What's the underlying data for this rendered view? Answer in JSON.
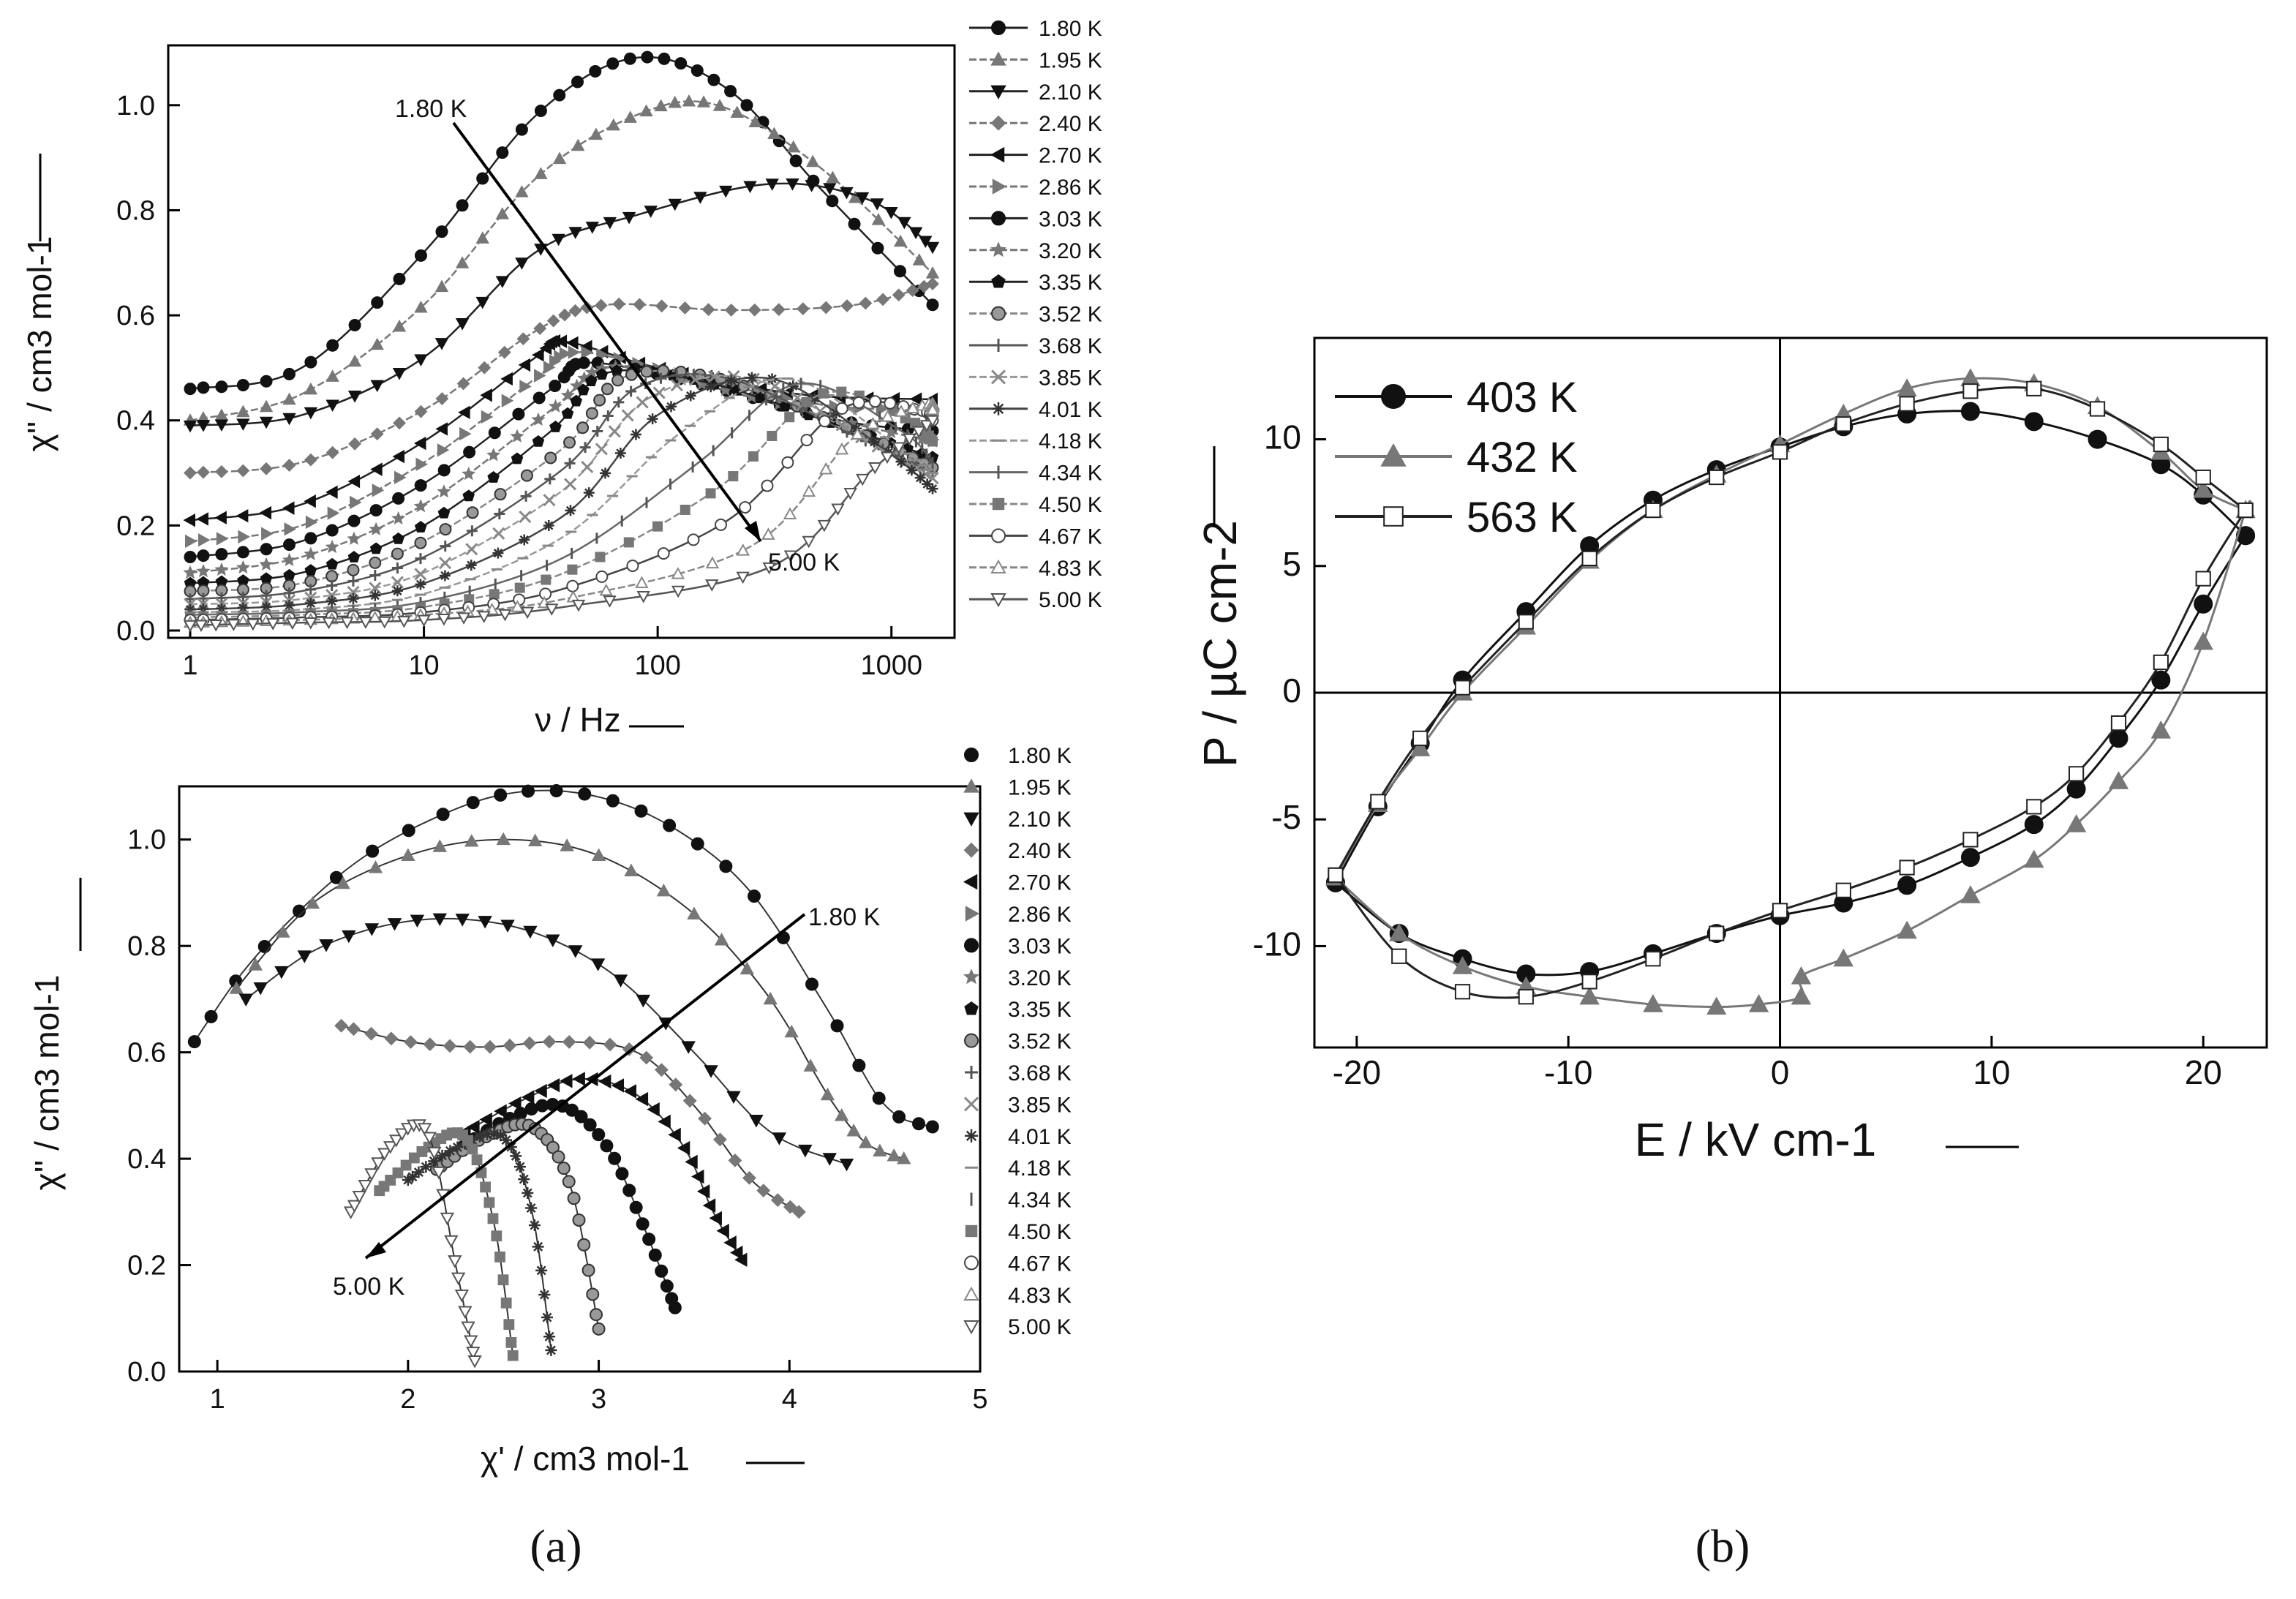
{
  "temperatures": [
    "1.80 K",
    "1.95 K",
    "2.10 K",
    "2.40 K",
    "2.70 K",
    "2.86 K",
    "3.03 K",
    "3.20 K",
    "3.35 K",
    "3.52 K",
    "3.68 K",
    "3.85 K",
    "4.01 K",
    "4.18 K",
    "4.34 K",
    "4.50 K",
    "4.67 K",
    "4.83 K",
    "5.00 K"
  ],
  "captions": {
    "a": "(a)",
    "b": "(b)",
    "a_letter": "a",
    "b_letter": "b"
  },
  "chart_data": [
    {
      "id": "top-left",
      "type": "line",
      "title": "",
      "xlabel": "ν / Hz",
      "ylabel": "χ'' / cm3 mol-1",
      "xscale": "log",
      "xlim": [
        1,
        1500
      ],
      "ylim": [
        0,
        1.1
      ],
      "xticks": [
        1,
        10,
        100,
        1000
      ],
      "xtick_labels": [
        "1",
        "10",
        "100",
        "1000"
      ],
      "yticks": [
        0.0,
        0.2,
        0.4,
        0.6,
        0.8,
        1.0
      ],
      "ytick_labels": [
        "0.0",
        "0.2",
        "0.4",
        "0.6",
        "0.8",
        "1.0"
      ],
      "legend_position": "right",
      "annotations": [
        {
          "text": "1.80 K"
        },
        {
          "text": "5.00 K"
        }
      ],
      "series": [
        {
          "name": "1.80 K",
          "x": [
            1,
            3,
            10,
            30,
            80,
            200,
            500,
            1500
          ],
          "y": [
            0.46,
            0.5,
            0.72,
            0.98,
            1.09,
            1.03,
            0.84,
            0.62
          ]
        },
        {
          "name": "1.95 K",
          "x": [
            1,
            3,
            10,
            30,
            80,
            180,
            500,
            1500
          ],
          "y": [
            0.4,
            0.45,
            0.62,
            0.86,
            0.98,
            1.0,
            0.88,
            0.68
          ]
        },
        {
          "name": "2.10 K",
          "x": [
            1,
            3,
            10,
            30,
            80,
            300,
            800,
            1500
          ],
          "y": [
            0.39,
            0.41,
            0.52,
            0.72,
            0.79,
            0.85,
            0.82,
            0.73
          ]
        },
        {
          "name": "2.40 K",
          "x": [
            1,
            3,
            10,
            30,
            60,
            200,
            700,
            1500
          ],
          "y": [
            0.3,
            0.32,
            0.42,
            0.57,
            0.62,
            0.61,
            0.62,
            0.66
          ]
        },
        {
          "name": "2.70 K",
          "x": [
            1,
            3,
            10,
            30,
            40,
            100,
            400,
            1500
          ],
          "y": [
            0.21,
            0.24,
            0.36,
            0.52,
            0.55,
            0.5,
            0.45,
            0.44
          ]
        },
        {
          "name": "2.86 K",
          "x": [
            1,
            3,
            10,
            30,
            45,
            120,
            500,
            1500
          ],
          "y": [
            0.17,
            0.2,
            0.32,
            0.48,
            0.53,
            0.49,
            0.43,
            0.42
          ]
        },
        {
          "name": "3.03 K",
          "x": [
            1,
            3,
            10,
            35,
            50,
            150,
            600,
            1500
          ],
          "y": [
            0.14,
            0.17,
            0.28,
            0.46,
            0.51,
            0.47,
            0.4,
            0.38
          ]
        },
        {
          "name": "3.20 K",
          "x": [
            1,
            3,
            10,
            35,
            60,
            150,
            600,
            1500
          ],
          "y": [
            0.11,
            0.14,
            0.24,
            0.42,
            0.5,
            0.47,
            0.4,
            0.36
          ]
        },
        {
          "name": "3.35 K",
          "x": [
            1,
            3,
            10,
            35,
            60,
            170,
            600,
            1500
          ],
          "y": [
            0.09,
            0.11,
            0.2,
            0.38,
            0.49,
            0.47,
            0.39,
            0.33
          ]
        },
        {
          "name": "3.52 K",
          "x": [
            1,
            3,
            10,
            40,
            70,
            180,
            700,
            1500
          ],
          "y": [
            0.075,
            0.09,
            0.17,
            0.35,
            0.48,
            0.48,
            0.38,
            0.31
          ]
        },
        {
          "name": "3.68 K",
          "x": [
            1,
            3,
            10,
            40,
            80,
            200,
            700,
            1500
          ],
          "y": [
            0.06,
            0.075,
            0.14,
            0.31,
            0.46,
            0.48,
            0.37,
            0.3
          ]
        },
        {
          "name": "3.85 K",
          "x": [
            1,
            3,
            10,
            40,
            90,
            250,
            800,
            1500
          ],
          "y": [
            0.05,
            0.06,
            0.11,
            0.27,
            0.44,
            0.48,
            0.36,
            0.29
          ]
        },
        {
          "name": "4.01 K",
          "x": [
            1,
            3,
            10,
            40,
            100,
            300,
            900,
            1500
          ],
          "y": [
            0.04,
            0.05,
            0.09,
            0.22,
            0.41,
            0.48,
            0.35,
            0.27
          ]
        },
        {
          "name": "4.18 K",
          "x": [
            1,
            3,
            10,
            40,
            120,
            350,
            1000,
            1500
          ],
          "y": [
            0.035,
            0.04,
            0.07,
            0.18,
            0.37,
            0.48,
            0.36,
            0.3
          ]
        },
        {
          "name": "4.34 K",
          "x": [
            1,
            3,
            10,
            40,
            150,
            400,
            1100,
            1500
          ],
          "y": [
            0.03,
            0.035,
            0.055,
            0.14,
            0.32,
            0.47,
            0.38,
            0.32
          ]
        },
        {
          "name": "4.50 K",
          "x": [
            1,
            3,
            10,
            40,
            180,
            500,
            1200,
            1500
          ],
          "y": [
            0.025,
            0.03,
            0.045,
            0.11,
            0.27,
            0.45,
            0.4,
            0.36
          ]
        },
        {
          "name": "4.67 K",
          "x": [
            1,
            3,
            10,
            40,
            200,
            600,
            1300,
            1500
          ],
          "y": [
            0.02,
            0.025,
            0.035,
            0.08,
            0.21,
            0.42,
            0.42,
            0.4
          ]
        },
        {
          "name": "4.83 K",
          "x": [
            1,
            3,
            10,
            40,
            250,
            700,
            1400,
            1500
          ],
          "y": [
            0.015,
            0.02,
            0.03,
            0.06,
            0.16,
            0.37,
            0.43,
            0.42
          ]
        },
        {
          "name": "5.00 K",
          "x": [
            1,
            3,
            10,
            40,
            300,
            800,
            1500
          ],
          "y": [
            0.01,
            0.015,
            0.02,
            0.045,
            0.12,
            0.3,
            0.4
          ]
        }
      ]
    },
    {
      "id": "bottom-left",
      "type": "scatter",
      "title": "",
      "xlabel": "χ' / cm3 mol-1",
      "ylabel": "χ'' / cm3 mol-1",
      "xlim": [
        0.8,
        5
      ],
      "ylim": [
        0,
        1.1
      ],
      "xticks": [
        1,
        2,
        3,
        4,
        5
      ],
      "xtick_labels": [
        "1",
        "2",
        "3",
        "4",
        "5"
      ],
      "yticks": [
        0.0,
        0.2,
        0.4,
        0.6,
        0.8,
        1.0
      ],
      "ytick_labels": [
        "0.0",
        "0.2",
        "0.4",
        "0.6",
        "0.8",
        "1.0"
      ],
      "legend_position": "right",
      "annotations": [
        {
          "text": "1.80 K"
        },
        {
          "text": "5.00 K"
        }
      ],
      "series": [
        {
          "name": "1.80 K",
          "x": [
            0.88,
            1.2,
            1.7,
            2.2,
            2.6,
            3.0,
            3.4,
            3.8,
            4.2,
            4.5,
            4.75
          ],
          "y": [
            0.62,
            0.78,
            0.95,
            1.05,
            1.09,
            1.08,
            1.02,
            0.9,
            0.68,
            0.5,
            0.46
          ]
        },
        {
          "name": "1.95 K",
          "x": [
            1.1,
            1.5,
            2.0,
            2.5,
            3.0,
            3.5,
            3.9,
            4.2,
            4.4,
            4.6
          ],
          "y": [
            0.72,
            0.88,
            0.97,
            1.0,
            0.97,
            0.86,
            0.7,
            0.52,
            0.43,
            0.4
          ]
        },
        {
          "name": "2.10 K",
          "x": [
            1.15,
            1.5,
            1.9,
            2.3,
            2.7,
            3.1,
            3.5,
            3.9,
            4.3
          ],
          "y": [
            0.7,
            0.79,
            0.84,
            0.85,
            0.82,
            0.74,
            0.6,
            0.45,
            0.39
          ]
        },
        {
          "name": "2.40 K",
          "x": [
            1.65,
            2.0,
            2.4,
            2.8,
            3.2,
            3.5,
            3.8,
            4.05
          ],
          "y": [
            0.65,
            0.62,
            0.61,
            0.62,
            0.6,
            0.5,
            0.36,
            0.3
          ]
        },
        {
          "name": "2.70 K",
          "x": [
            2.3,
            2.6,
            2.9,
            3.2,
            3.45,
            3.6,
            3.75
          ],
          "y": [
            0.45,
            0.51,
            0.55,
            0.52,
            0.42,
            0.3,
            0.21
          ]
        },
        {
          "name": "3.03 K",
          "x": [
            2.2,
            2.5,
            2.8,
            3.05,
            3.25,
            3.4
          ],
          "y": [
            0.4,
            0.47,
            0.5,
            0.42,
            0.26,
            0.12
          ]
        },
        {
          "name": "3.52 K",
          "x": [
            2.15,
            2.4,
            2.65,
            2.85,
            3.0
          ],
          "y": [
            0.38,
            0.44,
            0.46,
            0.35,
            0.08
          ]
        },
        {
          "name": "4.01 K",
          "x": [
            2.0,
            2.25,
            2.5,
            2.65,
            2.75
          ],
          "y": [
            0.36,
            0.42,
            0.44,
            0.3,
            0.04
          ]
        },
        {
          "name": "4.50 K",
          "x": [
            1.85,
            2.1,
            2.3,
            2.45,
            2.55
          ],
          "y": [
            0.34,
            0.42,
            0.44,
            0.28,
            0.03
          ]
        },
        {
          "name": "5.00 K",
          "x": [
            1.7,
            1.9,
            2.1,
            2.25,
            2.35
          ],
          "y": [
            0.3,
            0.42,
            0.45,
            0.2,
            0.02
          ]
        }
      ]
    },
    {
      "id": "right",
      "type": "line",
      "title": "",
      "xlabel": "E / kV cm-1",
      "ylabel": "P / µC cm-2",
      "xlim": [
        -22,
        23
      ],
      "ylim": [
        -14,
        14
      ],
      "xticks": [
        -20,
        -10,
        0,
        10,
        20
      ],
      "xtick_labels": [
        "-20",
        "-10",
        "0",
        "10",
        "20"
      ],
      "yticks": [
        -10,
        -5,
        0,
        5,
        10
      ],
      "ytick_labels": [
        "-10",
        "-5",
        "0",
        "5",
        "10"
      ],
      "legend_position": "top-left",
      "series": [
        {
          "name": "403 K",
          "x": [
            -21,
            -19,
            -17,
            -15,
            -12,
            -9,
            -6,
            -3,
            0,
            3,
            6,
            9,
            12,
            15,
            18,
            20,
            22,
            22,
            20,
            18,
            16,
            14,
            12,
            9,
            6,
            3,
            0,
            -3,
            -6,
            -9,
            -12,
            -15,
            -18,
            -21
          ],
          "y": [
            -7.5,
            -4.5,
            -2,
            0.5,
            3.2,
            5.8,
            7.6,
            8.8,
            9.7,
            10.5,
            11.0,
            11.1,
            10.7,
            10.0,
            9.0,
            7.8,
            6.2,
            6.2,
            3.5,
            0.5,
            -1.8,
            -3.8,
            -5.2,
            -6.5,
            -7.6,
            -8.3,
            -8.8,
            -9.5,
            -10.3,
            -11.0,
            -11.1,
            -10.5,
            -9.5,
            -7.5
          ]
        },
        {
          "name": "432 K",
          "x": [
            -21,
            -19,
            -17,
            -15,
            -12,
            -9,
            -6,
            -3,
            0,
            3,
            6,
            9,
            12,
            15,
            18,
            20,
            22,
            22,
            20,
            18,
            16,
            14,
            12,
            9,
            6,
            3,
            1,
            1,
            -1,
            -3,
            -6,
            -9,
            -12,
            -15,
            -18,
            -21
          ],
          "y": [
            -7.3,
            -4.4,
            -2.2,
            0,
            2.6,
            5.2,
            7.2,
            8.6,
            9.8,
            11.0,
            12.0,
            12.4,
            12.2,
            11.3,
            9.5,
            8.0,
            7.2,
            7.2,
            2.0,
            -1.5,
            -3.5,
            -5.2,
            -6.6,
            -8.0,
            -9.4,
            -10.5,
            -11.2,
            -12.0,
            -12.3,
            -12.4,
            -12.3,
            -12.0,
            -11.6,
            -10.8,
            -9.5,
            -7.3
          ]
        },
        {
          "name": "563 K",
          "x": [
            -21,
            -19,
            -17,
            -15,
            -12,
            -9,
            -6,
            -3,
            0,
            3,
            6,
            9,
            12,
            15,
            18,
            20,
            22,
            22,
            20,
            18,
            16,
            14,
            12,
            9,
            6,
            3,
            0,
            -3,
            -6,
            -9,
            -12,
            -15,
            -18,
            -21
          ],
          "y": [
            -7.2,
            -4.3,
            -1.8,
            0.2,
            2.8,
            5.3,
            7.2,
            8.5,
            9.5,
            10.6,
            11.4,
            11.9,
            12.0,
            11.2,
            9.8,
            8.5,
            7.2,
            7.2,
            4.5,
            1.2,
            -1.2,
            -3.2,
            -4.5,
            -5.8,
            -6.9,
            -7.8,
            -8.6,
            -9.5,
            -10.5,
            -11.4,
            -12.0,
            -11.8,
            -10.4,
            -7.2
          ]
        }
      ]
    }
  ]
}
